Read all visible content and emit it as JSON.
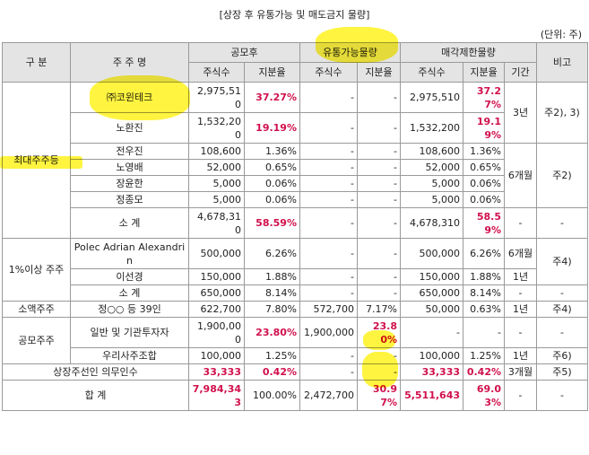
{
  "title": "[상장 후 유통가능 및 매도금지 물량]",
  "unit": "(단위: 주)",
  "header": {
    "top": [
      "구 분",
      "주 주 명",
      "공모후",
      "유통가능물량",
      "매각제한물량",
      "비고"
    ],
    "sub": [
      "주식수",
      "지분율",
      "주식수",
      "지분율",
      "주식수",
      "지분율",
      "기간"
    ]
  },
  "rows": [
    [
      "최대주주등",
      "㈜코윈테크",
      "2,975,510",
      "37.27%",
      "-",
      "-",
      "2,975,510",
      "37.27%",
      "3년",
      "주2), 3)"
    ],
    [
      "노환진",
      "1,532,200",
      "19.19%",
      "-",
      "-",
      "1,532,200",
      "19.19%"
    ],
    [
      "전우진",
      "108,600",
      "1.36%",
      "-",
      "-",
      "108,600",
      "1.36%",
      "6개월",
      "주2)"
    ],
    [
      "노영배",
      "52,000",
      "0.65%",
      "-",
      "-",
      "52,000",
      "0.65%"
    ],
    [
      "장윤한",
      "5,000",
      "0.06%",
      "-",
      "-",
      "5,000",
      "0.06%"
    ],
    [
      "정종모",
      "5,000",
      "0.06%",
      "-",
      "-",
      "5,000",
      "0.06%"
    ],
    [
      "소 계",
      "4,678,310",
      "58.59%",
      "-",
      "-",
      "4,678,310",
      "58.59%",
      "-",
      "-"
    ],
    [
      "1%이상 주주",
      "Polec Adrian Alexandrin",
      "500,000",
      "6.26%",
      "-",
      "-",
      "500,000",
      "6.26%",
      "6개월",
      "주4)"
    ],
    [
      "이선경",
      "150,000",
      "1.88%",
      "-",
      "-",
      "150,000",
      "1.88%",
      "1년"
    ],
    [
      "소 계",
      "650,000",
      "8.14%",
      "-",
      "-",
      "650,000",
      "8.14%",
      "-",
      "-"
    ],
    [
      "소액주주",
      "정○○ 등 39인",
      "622,700",
      "7.80%",
      "572,700",
      "7.17%",
      "50,000",
      "0.63%",
      "1년",
      "주4)"
    ],
    [
      "공모주주",
      "일반 및 기관투자자",
      "1,900,000",
      "23.80%",
      "1,900,000",
      "23.80%",
      "-",
      "-",
      "-",
      "-"
    ],
    [
      "우리사주조합",
      "100,000",
      "1.25%",
      "-",
      "-",
      "100,000",
      "1.25%",
      "1년",
      "주6)"
    ],
    [
      "상장주선인 의무인수",
      "33,333",
      "0.42%",
      "-",
      "-",
      "33,333",
      "0.42%",
      "3개월",
      "주5)"
    ],
    [
      "합 계",
      "7,984,343",
      "100.00%",
      "2,472,700",
      "30.97%",
      "5,511,643",
      "69.03%",
      "-",
      "-"
    ]
  ]
}
